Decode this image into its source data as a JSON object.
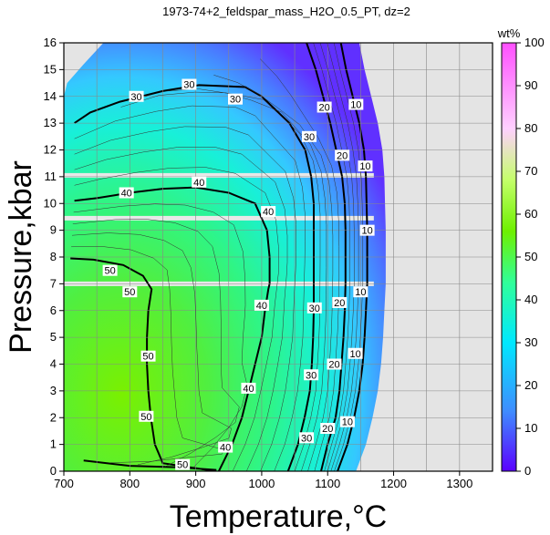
{
  "chart_data": {
    "type": "heatmap",
    "title": "1973-74+2_feldspar_mass_H2O_0.5_PT, dz=2",
    "xlabel": "Temperature,°C",
    "ylabel": "Pressure,kbar",
    "xlim": [
      700,
      1350
    ],
    "ylim": [
      0,
      16
    ],
    "xticks": [
      700,
      800,
      900,
      1000,
      1100,
      1200,
      1300
    ],
    "yticks": [
      0,
      1,
      2,
      3,
      4,
      5,
      6,
      7,
      8,
      9,
      10,
      11,
      12,
      13,
      14,
      15,
      16
    ],
    "grid": true,
    "colorbar": {
      "label": "wt%",
      "range": [
        0,
        100
      ],
      "ticks": [
        0,
        10,
        20,
        30,
        40,
        50,
        60,
        70,
        80,
        90,
        100
      ],
      "colors": [
        "#5a00ff",
        "#3f8cff",
        "#00e8ff",
        "#30ff9a",
        "#6ef000",
        "#c4ff6a",
        "#ffd0ff",
        "#ff4fff"
      ]
    },
    "contours": [
      {
        "level": 10,
        "points": [
          [
            1115,
            0
          ],
          [
            1130,
            1
          ],
          [
            1140,
            2
          ],
          [
            1148,
            3
          ],
          [
            1153,
            4
          ],
          [
            1156,
            5
          ],
          [
            1158,
            6
          ],
          [
            1160,
            7
          ],
          [
            1160,
            8
          ],
          [
            1160,
            9
          ],
          [
            1159,
            10
          ],
          [
            1158,
            11
          ],
          [
            1155,
            12
          ],
          [
            1148,
            13
          ],
          [
            1138,
            14
          ],
          [
            1128,
            15
          ],
          [
            1120,
            16
          ]
        ],
        "labels": [
          [
            1130,
            1.85
          ],
          [
            1142,
            4.4
          ],
          [
            1150,
            6.7
          ],
          [
            1160,
            9
          ],
          [
            1157,
            11.4
          ],
          [
            1143,
            13.7
          ]
        ]
      },
      {
        "level": 20,
        "points": [
          [
            1090,
            0
          ],
          [
            1100,
            1
          ],
          [
            1112,
            2
          ],
          [
            1118,
            3
          ],
          [
            1121,
            4
          ],
          [
            1124,
            5
          ],
          [
            1126,
            6
          ],
          [
            1127,
            7
          ],
          [
            1127,
            8
          ],
          [
            1127,
            9
          ],
          [
            1126,
            10
          ],
          [
            1122,
            11
          ],
          [
            1113,
            12
          ],
          [
            1104,
            13
          ],
          [
            1093,
            14
          ],
          [
            1082,
            15
          ],
          [
            1068,
            16
          ]
        ],
        "labels": [
          [
            1100,
            1.6
          ],
          [
            1110,
            4
          ],
          [
            1118,
            6.3
          ],
          [
            1122,
            11.8
          ],
          [
            1095,
            13.6
          ]
        ]
      },
      {
        "level": 30,
        "points": [
          [
            1040,
            0
          ],
          [
            1055,
            1
          ],
          [
            1065,
            2
          ],
          [
            1073,
            3
          ],
          [
            1076,
            4
          ],
          [
            1078,
            5
          ],
          [
            1079,
            6
          ],
          [
            1079,
            7
          ],
          [
            1079,
            8
          ],
          [
            1079,
            9
          ],
          [
            1079,
            10
          ],
          [
            1075,
            11
          ],
          [
            1066,
            12
          ],
          [
            1042,
            13
          ],
          [
            1000,
            14
          ],
          [
            975,
            14.35
          ],
          [
            905,
            14.42
          ],
          [
            850,
            14.2
          ],
          [
            785,
            13.8
          ],
          [
            740,
            13.4
          ],
          [
            716,
            13
          ]
        ],
        "labels": [
          [
            1068,
            1.25
          ],
          [
            1075,
            3.6
          ],
          [
            1080,
            6.1
          ],
          [
            1072,
            12.5
          ],
          [
            960,
            13.9
          ],
          [
            890,
            14.45
          ],
          [
            810,
            14.0
          ]
        ]
      },
      {
        "level": 40,
        "points": [
          [
            935,
            0
          ],
          [
            955,
            1
          ],
          [
            970,
            2
          ],
          [
            980,
            3
          ],
          [
            990,
            4
          ],
          [
            1000,
            5
          ],
          [
            1005,
            6
          ],
          [
            1010,
            6.8
          ],
          [
            1012,
            7
          ],
          [
            1012,
            8
          ],
          [
            1008,
            9
          ],
          [
            990,
            10
          ],
          [
            950,
            10.4
          ],
          [
            900,
            10.6
          ],
          [
            850,
            10.55
          ],
          [
            800,
            10.4
          ],
          [
            750,
            10.2
          ],
          [
            716,
            10.1
          ]
        ],
        "labels": [
          [
            945,
            0.9
          ],
          [
            980,
            3.1
          ],
          [
            1000,
            6.2
          ],
          [
            1010,
            9.7
          ],
          [
            905,
            10.8
          ],
          [
            795,
            10.4
          ]
        ]
      },
      {
        "level": 50,
        "points": [
          [
            730,
            0.4
          ],
          [
            800,
            0.2
          ],
          [
            870,
            0.15
          ],
          [
            930,
            0.05
          ],
          [
            930,
            0
          ],
          [
            850,
            0.3
          ],
          [
            838,
            1
          ],
          [
            832,
            2
          ],
          [
            828,
            3
          ],
          [
            826,
            4
          ],
          [
            826,
            5
          ],
          [
            828,
            6
          ],
          [
            833,
            6.8
          ],
          [
            820,
            7.3
          ],
          [
            790,
            7.7
          ],
          [
            745,
            7.9
          ],
          [
            710,
            7.95
          ]
        ],
        "labels": [
          [
            880,
            0.25
          ],
          [
            825,
            2.05
          ],
          [
            828,
            4.3
          ],
          [
            800,
            6.7
          ],
          [
            770,
            7.5
          ]
        ]
      }
    ]
  }
}
